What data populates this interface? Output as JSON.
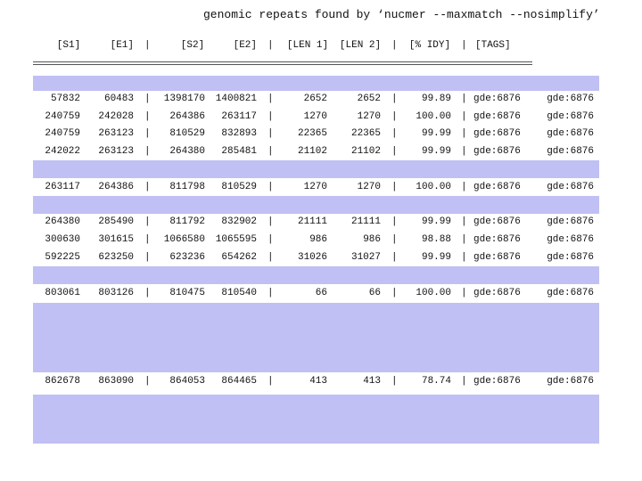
{
  "title": "genomic repeats found by ‘nucmer --maxmatch --nosimplify’",
  "separator": "|",
  "table": {
    "headers": [
      "[S1]",
      "[E1]",
      "[S2]",
      "[E2]",
      "[LEN 1]",
      "[LEN 2]",
      "[% IDY]",
      "[TAGS]"
    ],
    "rows": [
      [
        "57832",
        "60483",
        "1398170",
        "1400821",
        "2652",
        "2652",
        "99.89",
        "gde:6876",
        "gde:6876"
      ],
      [
        "240759",
        "242028",
        "264386",
        "263117",
        "1270",
        "1270",
        "100.00",
        "gde:6876",
        "gde:6876"
      ],
      [
        "240759",
        "263123",
        "810529",
        "832893",
        "22365",
        "22365",
        "99.99",
        "gde:6876",
        "gde:6876"
      ],
      [
        "242022",
        "263123",
        "264380",
        "285481",
        "21102",
        "21102",
        "99.99",
        "gde:6876",
        "gde:6876"
      ],
      [
        "263117",
        "264386",
        "811798",
        "810529",
        "1270",
        "1270",
        "100.00",
        "gde:6876",
        "gde:6876"
      ],
      [
        "264380",
        "285490",
        "811792",
        "832902",
        "21111",
        "21111",
        "99.99",
        "gde:6876",
        "gde:6876"
      ],
      [
        "300630",
        "301615",
        "1066580",
        "1065595",
        "986",
        "986",
        "98.88",
        "gde:6876",
        "gde:6876"
      ],
      [
        "592225",
        "623250",
        "623236",
        "654262",
        "31026",
        "31027",
        "99.99",
        "gde:6876",
        "gde:6876"
      ],
      [
        "803061",
        "803126",
        "810475",
        "810540",
        "66",
        "66",
        "100.00",
        "gde:6876",
        "gde:6876"
      ],
      [
        "862678",
        "863090",
        "864053",
        "864465",
        "413",
        "413",
        "78.74",
        "gde:6876",
        "gde:6876"
      ]
    ]
  }
}
